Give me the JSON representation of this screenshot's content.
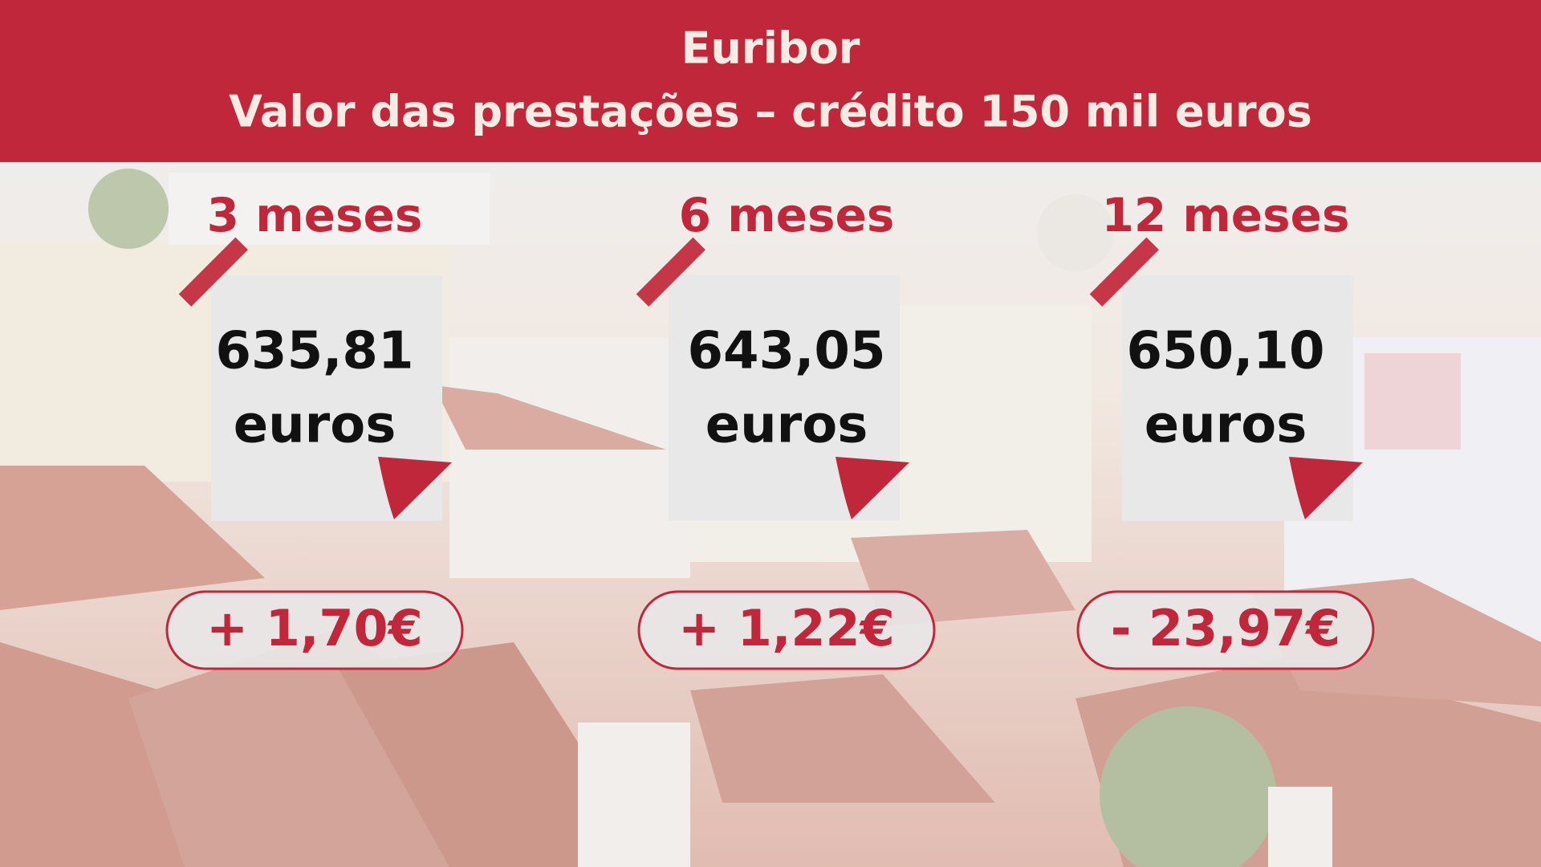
{
  "header": {
    "title": "Euribor",
    "subtitle": "Valor das prestações – crédito 150 mil euros"
  },
  "cards": [
    {
      "period": "3 meses",
      "amount": "635,81",
      "unit": "euros",
      "change": "+ 1,70€"
    },
    {
      "period": "6 meses",
      "amount": "643,05",
      "unit": "euros",
      "change": "+ 1,22€"
    },
    {
      "period": "12 meses",
      "amount": "650,10",
      "unit": "euros",
      "change": "- 23,97€"
    }
  ]
}
